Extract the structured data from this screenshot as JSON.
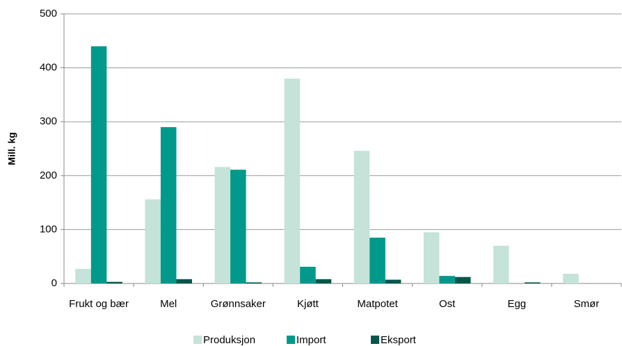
{
  "chart_data": {
    "type": "bar",
    "ylabel": "Mill. kg",
    "categories": [
      "Frukt og bær",
      "Mel",
      "Grønnsaker",
      "Kjøtt",
      "Matpotet",
      "Ost",
      "Egg",
      "Smør"
    ],
    "series": [
      {
        "name": "Produksjon",
        "color": "#c5e3d8",
        "values": [
          27,
          156,
          216,
          380,
          246,
          95,
          70,
          18
        ]
      },
      {
        "name": "Import",
        "color": "#00998a",
        "values": [
          440,
          290,
          211,
          31,
          85,
          14,
          0,
          0
        ]
      },
      {
        "name": "Eksport",
        "color": "#00574a",
        "values": [
          3,
          8,
          2,
          8,
          7,
          12,
          2,
          0
        ]
      }
    ],
    "ylim": [
      0,
      500
    ],
    "yticks": [
      0,
      100,
      200,
      300,
      400,
      500
    ],
    "grid": true,
    "legend": "bottom"
  }
}
